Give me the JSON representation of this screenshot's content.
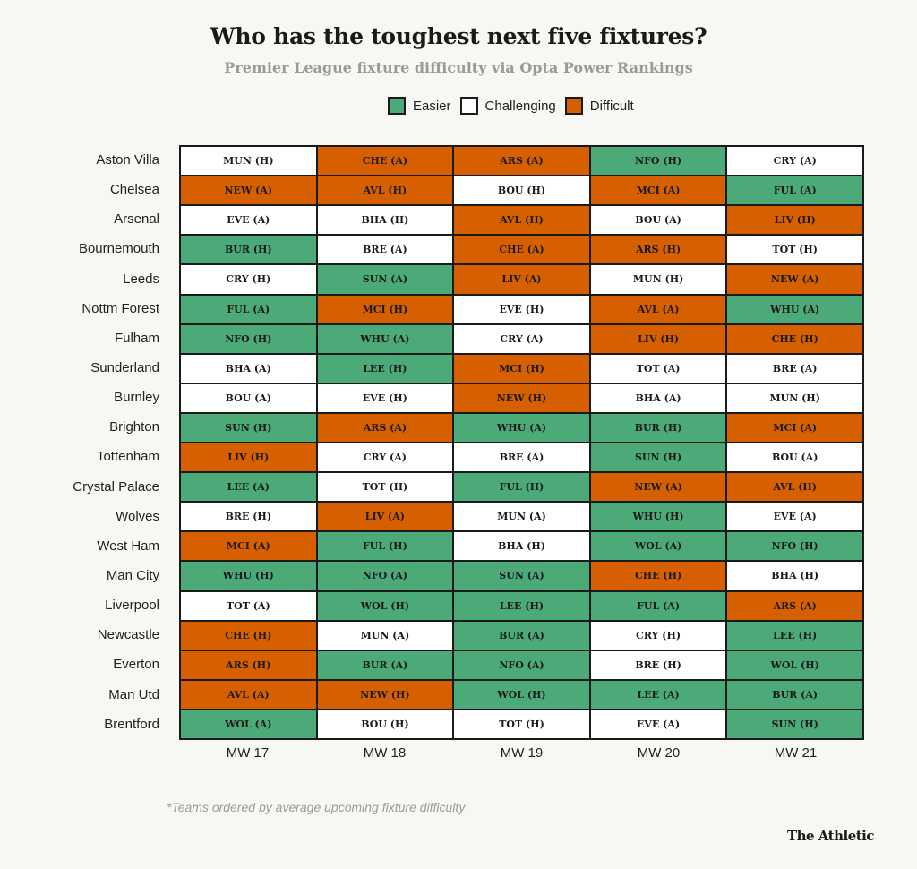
{
  "chart_data": {
    "type": "table",
    "title": "Who has the toughest next five fixtures?",
    "subtitle": "Premier League fixture difficulty via Opta Power Rankings",
    "legend": [
      {
        "key": "easier",
        "label": "Easier",
        "color": "#4caa78"
      },
      {
        "key": "challenging",
        "label": "Challenging",
        "color": "#ffffff"
      },
      {
        "key": "difficult",
        "label": "Difficult",
        "color": "#d65f00"
      }
    ],
    "legend_position": "top",
    "columns": [
      "MW 17",
      "MW 18",
      "MW 19",
      "MW 20",
      "MW 21"
    ],
    "rows": [
      {
        "team": "Aston Villa",
        "fixtures": [
          [
            "MUN (H)",
            "challenging"
          ],
          [
            "CHE (A)",
            "difficult"
          ],
          [
            "ARS (A)",
            "difficult"
          ],
          [
            "NFO (H)",
            "easier"
          ],
          [
            "CRY (A)",
            "challenging"
          ]
        ]
      },
      {
        "team": "Chelsea",
        "fixtures": [
          [
            "NEW (A)",
            "difficult"
          ],
          [
            "AVL (H)",
            "difficult"
          ],
          [
            "BOU (H)",
            "challenging"
          ],
          [
            "MCI (A)",
            "difficult"
          ],
          [
            "FUL (A)",
            "easier"
          ]
        ]
      },
      {
        "team": "Arsenal",
        "fixtures": [
          [
            "EVE (A)",
            "challenging"
          ],
          [
            "BHA (H)",
            "challenging"
          ],
          [
            "AVL (H)",
            "difficult"
          ],
          [
            "BOU (A)",
            "challenging"
          ],
          [
            "LIV (H)",
            "difficult"
          ]
        ]
      },
      {
        "team": "Bournemouth",
        "fixtures": [
          [
            "BUR (H)",
            "easier"
          ],
          [
            "BRE (A)",
            "challenging"
          ],
          [
            "CHE (A)",
            "difficult"
          ],
          [
            "ARS (H)",
            "difficult"
          ],
          [
            "TOT (H)",
            "challenging"
          ]
        ]
      },
      {
        "team": "Leeds",
        "fixtures": [
          [
            "CRY (H)",
            "challenging"
          ],
          [
            "SUN (A)",
            "easier"
          ],
          [
            "LIV (A)",
            "difficult"
          ],
          [
            "MUN (H)",
            "challenging"
          ],
          [
            "NEW (A)",
            "difficult"
          ]
        ]
      },
      {
        "team": "Nottm Forest",
        "fixtures": [
          [
            "FUL (A)",
            "easier"
          ],
          [
            "MCI (H)",
            "difficult"
          ],
          [
            "EVE (H)",
            "challenging"
          ],
          [
            "AVL (A)",
            "difficult"
          ],
          [
            "WHU (A)",
            "easier"
          ]
        ]
      },
      {
        "team": "Fulham",
        "fixtures": [
          [
            "NFO (H)",
            "easier"
          ],
          [
            "WHU (A)",
            "easier"
          ],
          [
            "CRY (A)",
            "challenging"
          ],
          [
            "LIV (H)",
            "difficult"
          ],
          [
            "CHE (H)",
            "difficult"
          ]
        ]
      },
      {
        "team": "Sunderland",
        "fixtures": [
          [
            "BHA (A)",
            "challenging"
          ],
          [
            "LEE (H)",
            "easier"
          ],
          [
            "MCI (H)",
            "difficult"
          ],
          [
            "TOT (A)",
            "challenging"
          ],
          [
            "BRE (A)",
            "challenging"
          ]
        ]
      },
      {
        "team": "Burnley",
        "fixtures": [
          [
            "BOU (A)",
            "challenging"
          ],
          [
            "EVE (H)",
            "challenging"
          ],
          [
            "NEW (H)",
            "difficult"
          ],
          [
            "BHA (A)",
            "challenging"
          ],
          [
            "MUN (H)",
            "challenging"
          ]
        ]
      },
      {
        "team": "Brighton",
        "fixtures": [
          [
            "SUN (H)",
            "easier"
          ],
          [
            "ARS (A)",
            "difficult"
          ],
          [
            "WHU (A)",
            "easier"
          ],
          [
            "BUR (H)",
            "easier"
          ],
          [
            "MCI (A)",
            "difficult"
          ]
        ]
      },
      {
        "team": "Tottenham",
        "fixtures": [
          [
            "LIV (H)",
            "difficult"
          ],
          [
            "CRY (A)",
            "challenging"
          ],
          [
            "BRE (A)",
            "challenging"
          ],
          [
            "SUN (H)",
            "easier"
          ],
          [
            "BOU (A)",
            "challenging"
          ]
        ]
      },
      {
        "team": "Crystal Palace",
        "fixtures": [
          [
            "LEE (A)",
            "easier"
          ],
          [
            "TOT (H)",
            "challenging"
          ],
          [
            "FUL (H)",
            "easier"
          ],
          [
            "NEW (A)",
            "difficult"
          ],
          [
            "AVL (H)",
            "difficult"
          ]
        ]
      },
      {
        "team": "Wolves",
        "fixtures": [
          [
            "BRE (H)",
            "challenging"
          ],
          [
            "LIV (A)",
            "difficult"
          ],
          [
            "MUN (A)",
            "challenging"
          ],
          [
            "WHU (H)",
            "easier"
          ],
          [
            "EVE (A)",
            "challenging"
          ]
        ]
      },
      {
        "team": "West Ham",
        "fixtures": [
          [
            "MCI (A)",
            "difficult"
          ],
          [
            "FUL (H)",
            "easier"
          ],
          [
            "BHA (H)",
            "challenging"
          ],
          [
            "WOL (A)",
            "easier"
          ],
          [
            "NFO (H)",
            "easier"
          ]
        ]
      },
      {
        "team": "Man City",
        "fixtures": [
          [
            "WHU (H)",
            "easier"
          ],
          [
            "NFO (A)",
            "easier"
          ],
          [
            "SUN (A)",
            "easier"
          ],
          [
            "CHE (H)",
            "difficult"
          ],
          [
            "BHA (H)",
            "challenging"
          ]
        ]
      },
      {
        "team": "Liverpool",
        "fixtures": [
          [
            "TOT (A)",
            "challenging"
          ],
          [
            "WOL (H)",
            "easier"
          ],
          [
            "LEE (H)",
            "easier"
          ],
          [
            "FUL (A)",
            "easier"
          ],
          [
            "ARS (A)",
            "difficult"
          ]
        ]
      },
      {
        "team": "Newcastle",
        "fixtures": [
          [
            "CHE (H)",
            "difficult"
          ],
          [
            "MUN (A)",
            "challenging"
          ],
          [
            "BUR (A)",
            "easier"
          ],
          [
            "CRY (H)",
            "challenging"
          ],
          [
            "LEE (H)",
            "easier"
          ]
        ]
      },
      {
        "team": "Everton",
        "fixtures": [
          [
            "ARS (H)",
            "difficult"
          ],
          [
            "BUR (A)",
            "easier"
          ],
          [
            "NFO (A)",
            "easier"
          ],
          [
            "BRE (H)",
            "challenging"
          ],
          [
            "WOL (H)",
            "easier"
          ]
        ]
      },
      {
        "team": "Man Utd",
        "fixtures": [
          [
            "AVL (A)",
            "difficult"
          ],
          [
            "NEW (H)",
            "difficult"
          ],
          [
            "WOL (H)",
            "easier"
          ],
          [
            "LEE (A)",
            "easier"
          ],
          [
            "BUR (A)",
            "easier"
          ]
        ]
      },
      {
        "team": "Brentford",
        "fixtures": [
          [
            "WOL (A)",
            "easier"
          ],
          [
            "BOU (H)",
            "challenging"
          ],
          [
            "TOT (H)",
            "challenging"
          ],
          [
            "EVE (A)",
            "challenging"
          ],
          [
            "SUN (H)",
            "easier"
          ]
        ]
      }
    ],
    "footnote": "*Teams ordered by average upcoming fixture difficulty",
    "source_logo": "The Athletic"
  }
}
